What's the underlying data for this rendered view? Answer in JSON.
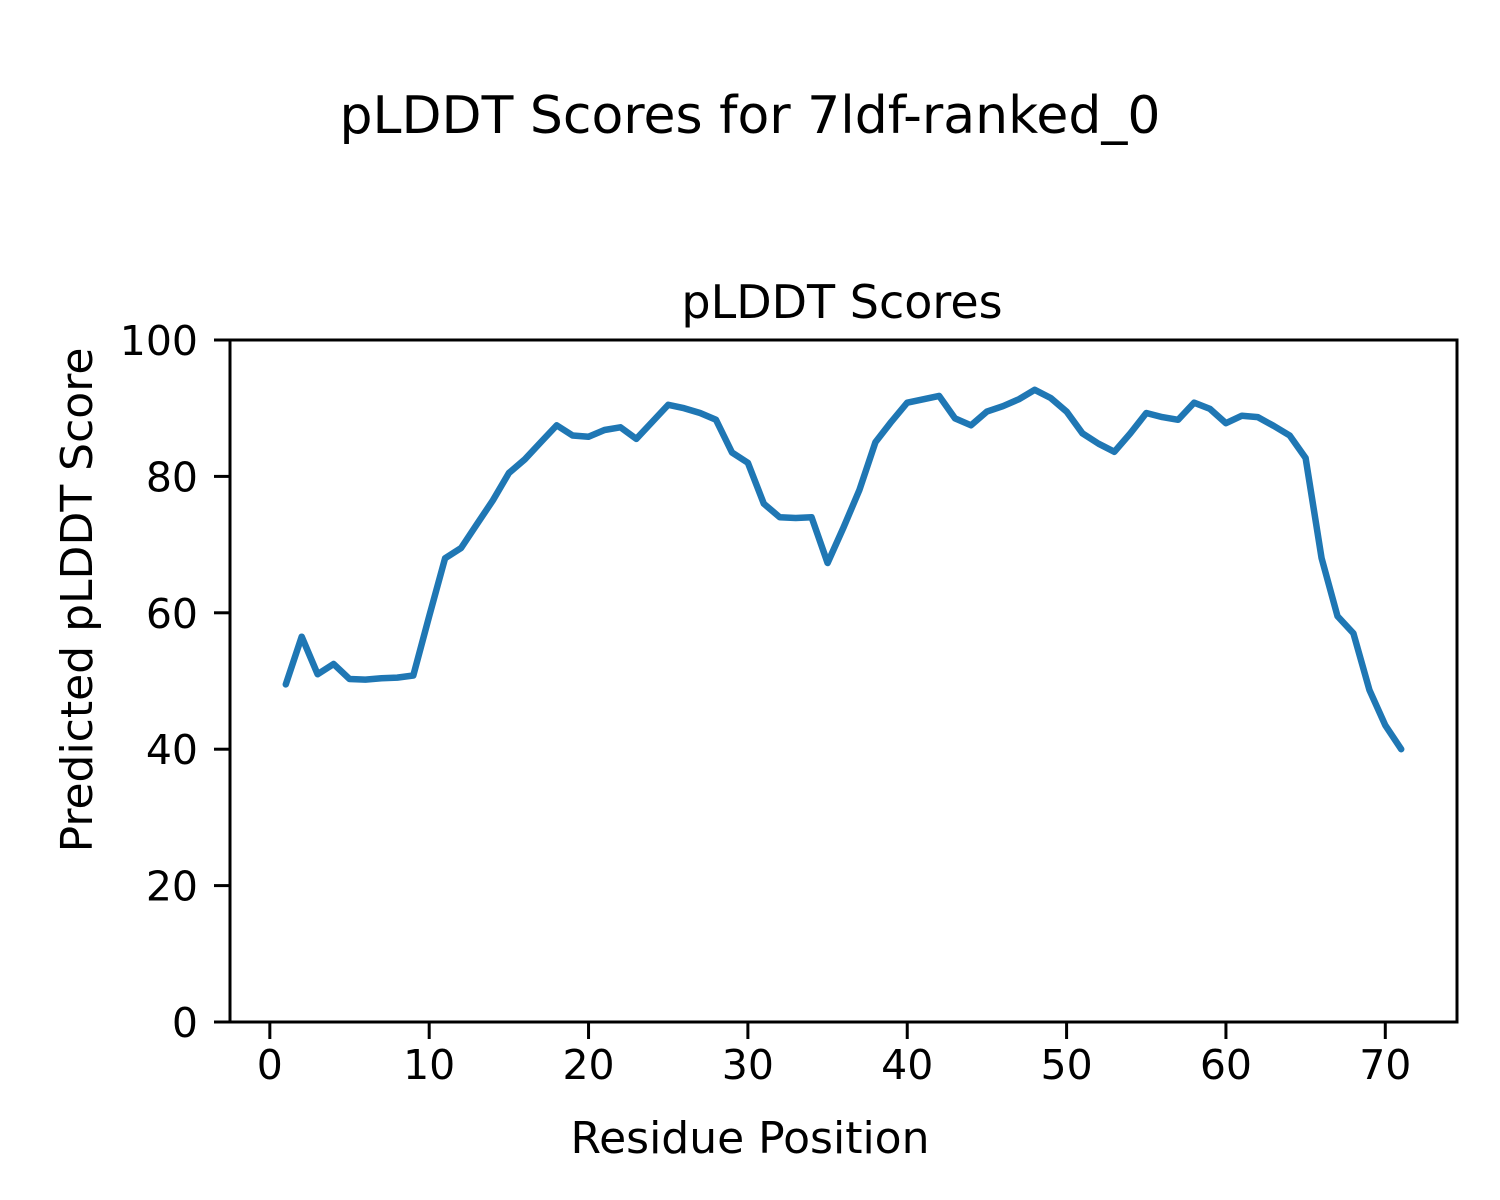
{
  "figure": {
    "suptitle": "pLDDT Scores for 7ldf-ranked_0"
  },
  "chart_data": {
    "type": "line",
    "title": "pLDDT Scores",
    "xlabel": "Residue Position",
    "ylabel": "Predicted pLDDT Score",
    "xlim": [
      -2.5,
      74.5
    ],
    "ylim": [
      0,
      100
    ],
    "x_ticks": [
      0,
      10,
      20,
      30,
      40,
      50,
      60,
      70
    ],
    "y_ticks": [
      0,
      20,
      40,
      60,
      80,
      100
    ],
    "grid": false,
    "legend": "none",
    "line_color": "#1f77b4",
    "series": [
      {
        "name": "pLDDT",
        "x": [
          1,
          2,
          3,
          4,
          5,
          6,
          7,
          8,
          9,
          10,
          11,
          12,
          13,
          14,
          15,
          16,
          17,
          18,
          19,
          20,
          21,
          22,
          23,
          24,
          25,
          26,
          27,
          28,
          29,
          30,
          31,
          32,
          33,
          34,
          35,
          36,
          37,
          38,
          39,
          40,
          41,
          42,
          43,
          44,
          45,
          46,
          47,
          48,
          49,
          50,
          51,
          52,
          53,
          54,
          55,
          56,
          57,
          58,
          59,
          60,
          61,
          62,
          63,
          64,
          65,
          66,
          67,
          68,
          69,
          70,
          71
        ],
        "y": [
          49.5,
          56.5,
          51.0,
          52.5,
          50.3,
          50.2,
          50.4,
          50.5,
          50.8,
          59.5,
          68.0,
          69.5,
          73.0,
          76.5,
          80.5,
          82.5,
          85.0,
          87.5,
          86.0,
          85.8,
          86.8,
          87.2,
          85.5,
          88.0,
          90.5,
          90.0,
          89.3,
          88.3,
          83.5,
          82.0,
          76.0,
          74.0,
          73.9,
          74.0,
          67.3,
          72.5,
          78.0,
          85.0,
          88.0,
          90.8,
          91.3,
          91.8,
          88.5,
          87.5,
          89.5,
          90.3,
          91.3,
          92.7,
          91.5,
          89.5,
          86.3,
          84.8,
          83.6,
          86.3,
          89.3,
          88.7,
          88.3,
          90.8,
          89.9,
          87.8,
          88.9,
          88.7,
          87.4,
          86.0,
          82.7,
          68.0,
          59.5,
          57.0,
          48.7,
          43.5,
          40.0
        ]
      }
    ]
  }
}
